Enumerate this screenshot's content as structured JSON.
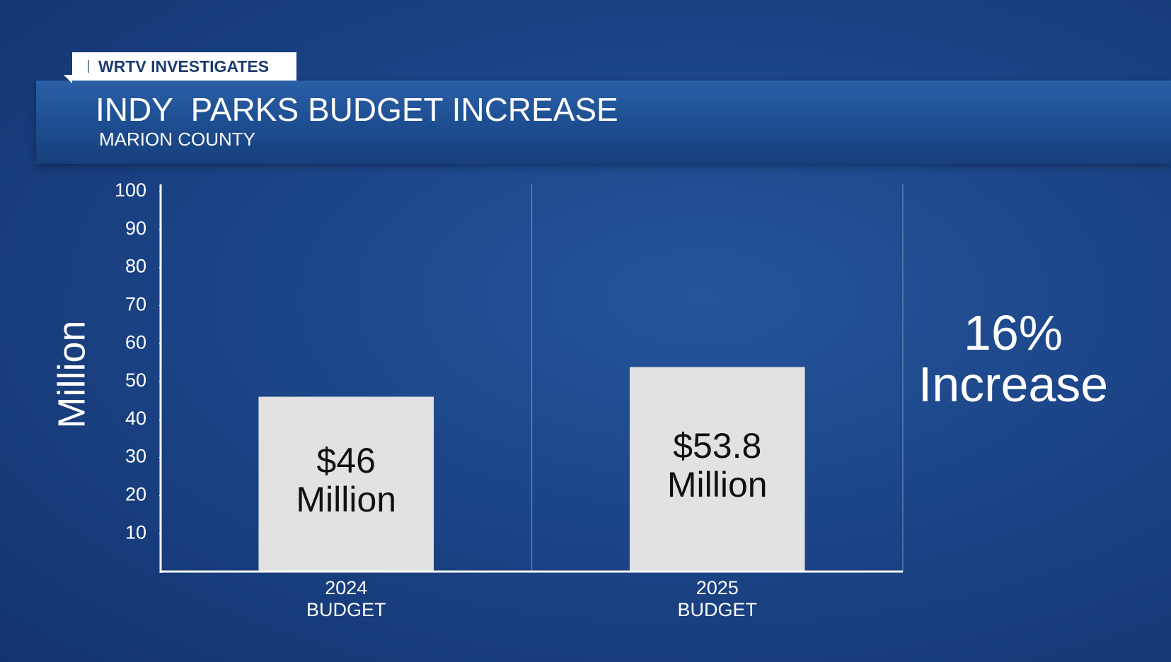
{
  "header": {
    "tag": "WRTV INVESTIGATES"
  },
  "chart_data": {
    "type": "bar",
    "title": "INDY  PARKS BUDGET INCREASE",
    "subtitle": "MARION COUNTY",
    "y_axis_label": "Million",
    "categories": [
      "2024\nBUDGET",
      "2025\nBUDGET"
    ],
    "values": [
      46,
      53.8
    ],
    "value_labels": [
      "$46\nMillion",
      "$53.8\nMillion"
    ],
    "color": "#e2e2e2",
    "ylim": [
      0,
      100
    ],
    "yticks": [
      10,
      20,
      30,
      40,
      50,
      60,
      70,
      80,
      90,
      100
    ],
    "annotation": "16%\nIncrease"
  }
}
